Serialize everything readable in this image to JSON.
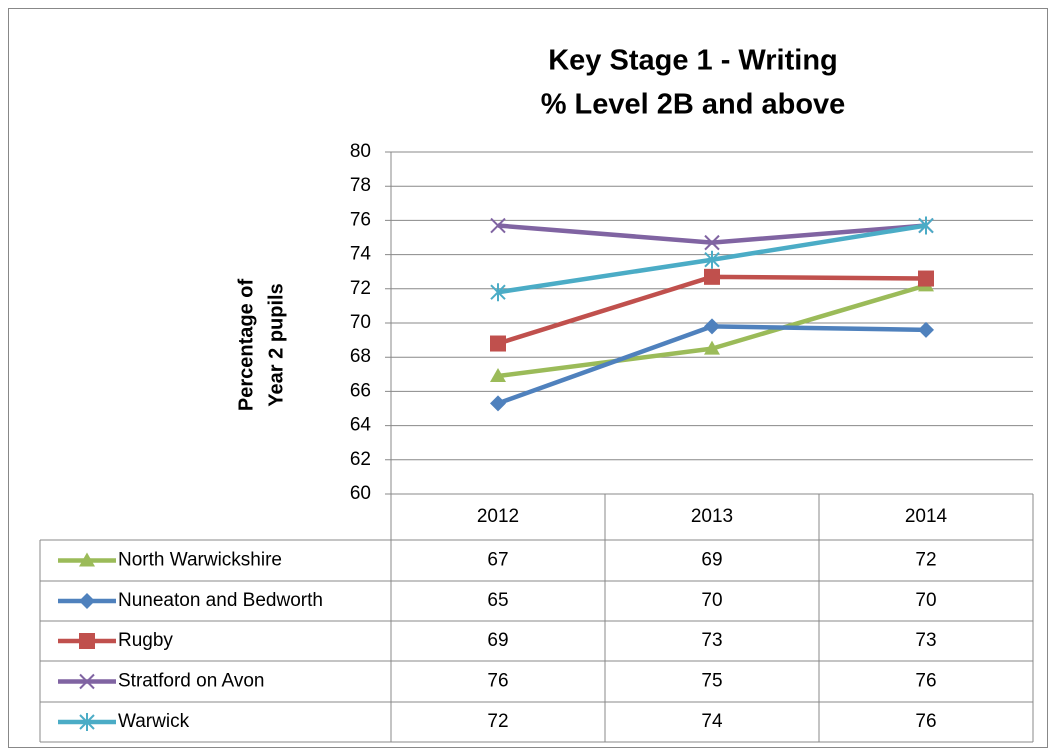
{
  "chart_data": {
    "type": "line",
    "title": [
      "Key Stage 1 - Writing",
      "% Level 2B and above"
    ],
    "y_label": [
      "Percentage of",
      "Year 2 pupils"
    ],
    "categories": [
      "2012",
      "2013",
      "2014"
    ],
    "ylim": [
      60,
      80
    ],
    "yticks": [
      60,
      62,
      64,
      66,
      68,
      70,
      72,
      74,
      76,
      78,
      80
    ],
    "grid": true,
    "series": [
      {
        "name": "North Warwickshire",
        "color": "#9bbb59",
        "marker": "triangle",
        "values": [
          66.9,
          68.5,
          72.2
        ],
        "value_labels": [
          "67",
          "69",
          "72"
        ]
      },
      {
        "name": "Nuneaton and Bedworth",
        "color": "#4f81bd",
        "marker": "diamond",
        "values": [
          65.3,
          69.8,
          69.6
        ],
        "value_labels": [
          "65",
          "70",
          "70"
        ]
      },
      {
        "name": "Rugby",
        "color": "#c0504d",
        "marker": "square",
        "values": [
          68.8,
          72.7,
          72.6
        ],
        "value_labels": [
          "69",
          "73",
          "73"
        ]
      },
      {
        "name": "Stratford on Avon",
        "color": "#8064a2",
        "marker": "x",
        "values": [
          75.7,
          74.7,
          75.7
        ],
        "value_labels": [
          "76",
          "75",
          "76"
        ]
      },
      {
        "name": "Warwick",
        "color": "#4bacc6",
        "marker": "star",
        "values": [
          71.8,
          73.7,
          75.7
        ],
        "value_labels": [
          "72",
          "74",
          "76"
        ]
      }
    ]
  }
}
